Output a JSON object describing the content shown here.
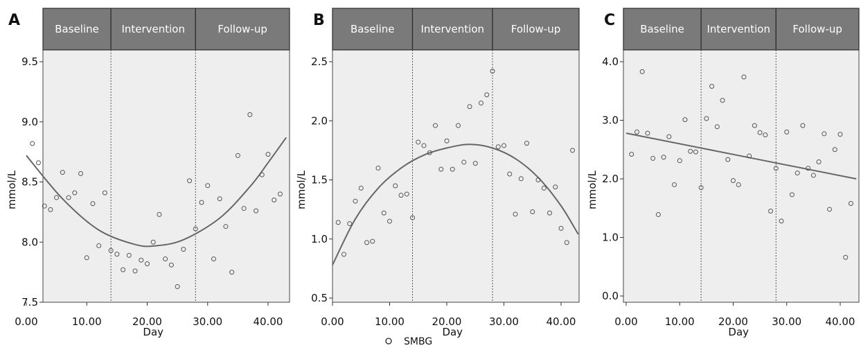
{
  "figure": {
    "legend": {
      "label": "SMBG",
      "marker": "open-circle"
    },
    "colors": {
      "header_fill": "#7a7a7a",
      "plot_bg": "#eeeeee",
      "point_stroke": "#555555",
      "curve": "#666666",
      "phase_divider": "#555555"
    }
  },
  "chart_data": [
    {
      "panel": "A",
      "type": "scatter",
      "phases": [
        "Baseline",
        "Intervention",
        "Follow-up"
      ],
      "phase_boundaries": [
        14,
        28
      ],
      "xlabel": "Day",
      "ylabel": "mmol/L",
      "xlim": [
        0,
        43
      ],
      "ylim": [
        7.5,
        9.7
      ],
      "x_ticks": [
        0,
        10,
        20,
        30,
        40
      ],
      "x_tick_labels": [
        "0.00",
        "10.00",
        "20.00",
        "30.00",
        "40.00"
      ],
      "y_ticks": [
        7.5,
        8.0,
        8.5,
        9.0,
        9.5
      ],
      "y_tick_labels": [
        "7.5",
        "8.0",
        "8.5",
        "9.0",
        "9.5"
      ],
      "grid": false,
      "fit": {
        "kind": "quadratic",
        "description": "quadratic fit line"
      },
      "fit_points": [
        [
          0,
          8.72
        ],
        [
          6,
          8.36
        ],
        [
          12,
          8.1
        ],
        [
          18,
          7.98
        ],
        [
          21.5,
          7.97
        ],
        [
          26,
          8.02
        ],
        [
          32,
          8.2
        ],
        [
          37,
          8.46
        ],
        [
          40,
          8.66
        ],
        [
          43,
          8.87
        ]
      ],
      "series": [
        {
          "name": "SMBG",
          "points": [
            [
              1,
              8.82
            ],
            [
              2,
              8.66
            ],
            [
              3,
              8.3
            ],
            [
              4,
              8.27
            ],
            [
              5,
              8.37
            ],
            [
              6,
              8.58
            ],
            [
              7,
              8.37
            ],
            [
              8,
              8.41
            ],
            [
              9,
              8.57
            ],
            [
              10,
              7.87
            ],
            [
              11,
              8.32
            ],
            [
              12,
              7.97
            ],
            [
              13,
              8.41
            ],
            [
              14,
              7.93
            ],
            [
              15,
              7.9
            ],
            [
              16,
              7.77
            ],
            [
              17,
              7.89
            ],
            [
              18,
              7.76
            ],
            [
              19,
              7.85
            ],
            [
              20,
              7.82
            ],
            [
              21,
              8.0
            ],
            [
              22,
              8.23
            ],
            [
              23,
              7.86
            ],
            [
              24,
              7.81
            ],
            [
              25,
              7.63
            ],
            [
              26,
              7.94
            ],
            [
              27,
              8.51
            ],
            [
              28,
              8.11
            ],
            [
              29,
              8.33
            ],
            [
              30,
              8.47
            ],
            [
              31,
              7.86
            ],
            [
              32,
              8.36
            ],
            [
              33,
              8.13
            ],
            [
              34,
              7.75
            ],
            [
              35,
              8.72
            ],
            [
              36,
              8.28
            ],
            [
              37,
              9.06
            ],
            [
              38,
              8.26
            ],
            [
              39,
              8.56
            ],
            [
              40,
              8.73
            ],
            [
              41,
              8.35
            ],
            [
              42,
              8.4
            ]
          ]
        }
      ]
    },
    {
      "panel": "B",
      "type": "scatter",
      "phases": [
        "Baseline",
        "Intervention",
        "Follow-up"
      ],
      "phase_boundaries": [
        14,
        28
      ],
      "xlabel": "Day",
      "ylabel": "mmol/L",
      "xlim": [
        0,
        43
      ],
      "ylim": [
        0.45,
        2.75
      ],
      "x_ticks": [
        0,
        10,
        20,
        30,
        40
      ],
      "x_tick_labels": [
        "0.00",
        "10.00",
        "20.00",
        "30.00",
        "40.00"
      ],
      "y_ticks": [
        0.5,
        1.0,
        1.5,
        2.0,
        2.5
      ],
      "y_tick_labels": [
        "0.5",
        "1.0",
        "1.5",
        "2.0",
        "2.5"
      ],
      "grid": false,
      "fit": {
        "kind": "quadratic",
        "description": "quadratic fit line"
      },
      "fit_points": [
        [
          0,
          0.78
        ],
        [
          4,
          1.17
        ],
        [
          8,
          1.43
        ],
        [
          12,
          1.6
        ],
        [
          16,
          1.71
        ],
        [
          20,
          1.77
        ],
        [
          24,
          1.8
        ],
        [
          28,
          1.77
        ],
        [
          32,
          1.68
        ],
        [
          36,
          1.52
        ],
        [
          40,
          1.28
        ],
        [
          43,
          1.04
        ]
      ],
      "series": [
        {
          "name": "SMBG",
          "points": [
            [
              1,
              1.14
            ],
            [
              2,
              0.87
            ],
            [
              3,
              1.13
            ],
            [
              4,
              1.32
            ],
            [
              5,
              1.43
            ],
            [
              6,
              0.97
            ],
            [
              7,
              0.98
            ],
            [
              8,
              1.6
            ],
            [
              9,
              1.22
            ],
            [
              10,
              1.15
            ],
            [
              11,
              1.45
            ],
            [
              12,
              1.37
            ],
            [
              13,
              1.38
            ],
            [
              14,
              1.18
            ],
            [
              15,
              1.82
            ],
            [
              16,
              1.79
            ],
            [
              17,
              1.73
            ],
            [
              18,
              1.96
            ],
            [
              19,
              1.59
            ],
            [
              20,
              1.83
            ],
            [
              21,
              1.59
            ],
            [
              22,
              1.96
            ],
            [
              23,
              1.65
            ],
            [
              24,
              2.12
            ],
            [
              25,
              1.64
            ],
            [
              26,
              2.15
            ],
            [
              27,
              2.22
            ],
            [
              28,
              2.42
            ],
            [
              29,
              1.78
            ],
            [
              30,
              1.79
            ],
            [
              31,
              1.55
            ],
            [
              32,
              1.21
            ],
            [
              33,
              1.51
            ],
            [
              34,
              1.81
            ],
            [
              35,
              1.23
            ],
            [
              36,
              1.5
            ],
            [
              37,
              1.43
            ],
            [
              38,
              1.22
            ],
            [
              39,
              1.44
            ],
            [
              40,
              1.09
            ],
            [
              41,
              0.97
            ],
            [
              42,
              1.75
            ]
          ]
        }
      ]
    },
    {
      "panel": "C",
      "type": "scatter",
      "phases": [
        "Baseline",
        "Intervention",
        "Follow-up"
      ],
      "phase_boundaries": [
        14,
        28
      ],
      "xlabel": "Day",
      "ylabel": "mmol/L",
      "xlim": [
        0,
        43
      ],
      "ylim": [
        0.0,
        4.35
      ],
      "x_ticks": [
        0,
        10,
        20,
        30,
        40
      ],
      "x_tick_labels": [
        "0.00",
        "10.00",
        "20.00",
        "30.00",
        "40.00"
      ],
      "y_ticks": [
        0.0,
        1.0,
        2.0,
        3.0,
        4.0
      ],
      "y_tick_labels": [
        "0.0",
        "1.0",
        "2.0",
        "3.0",
        "4.0"
      ],
      "grid": false,
      "fit": {
        "kind": "linear",
        "description": "linear fit line"
      },
      "fit_points": [
        [
          0,
          2.78
        ],
        [
          43,
          2.0
        ]
      ],
      "series": [
        {
          "name": "SMBG",
          "points": [
            [
              1,
              2.42
            ],
            [
              2,
              2.8
            ],
            [
              3,
              3.83
            ],
            [
              4,
              2.78
            ],
            [
              5,
              2.35
            ],
            [
              6,
              1.39
            ],
            [
              7,
              2.37
            ],
            [
              8,
              2.72
            ],
            [
              9,
              1.9
            ],
            [
              10,
              2.31
            ],
            [
              11,
              3.01
            ],
            [
              12,
              2.47
            ],
            [
              13,
              2.46
            ],
            [
              14,
              1.85
            ],
            [
              15,
              3.03
            ],
            [
              16,
              3.58
            ],
            [
              17,
              2.89
            ],
            [
              18,
              3.34
            ],
            [
              19,
              2.33
            ],
            [
              20,
              1.97
            ],
            [
              21,
              1.9
            ],
            [
              22,
              3.74
            ],
            [
              23,
              2.39
            ],
            [
              24,
              2.91
            ],
            [
              25,
              2.79
            ],
            [
              26,
              2.75
            ],
            [
              27,
              1.45
            ],
            [
              28,
              2.18
            ],
            [
              29,
              1.28
            ],
            [
              30,
              2.8
            ],
            [
              31,
              1.73
            ],
            [
              32,
              2.1
            ],
            [
              33,
              2.91
            ],
            [
              34,
              2.18
            ],
            [
              35,
              2.06
            ],
            [
              36,
              2.29
            ],
            [
              37,
              2.77
            ],
            [
              38,
              1.48
            ],
            [
              39,
              2.5
            ],
            [
              40,
              2.76
            ],
            [
              41,
              0.66
            ],
            [
              42,
              1.58
            ]
          ]
        }
      ]
    }
  ]
}
